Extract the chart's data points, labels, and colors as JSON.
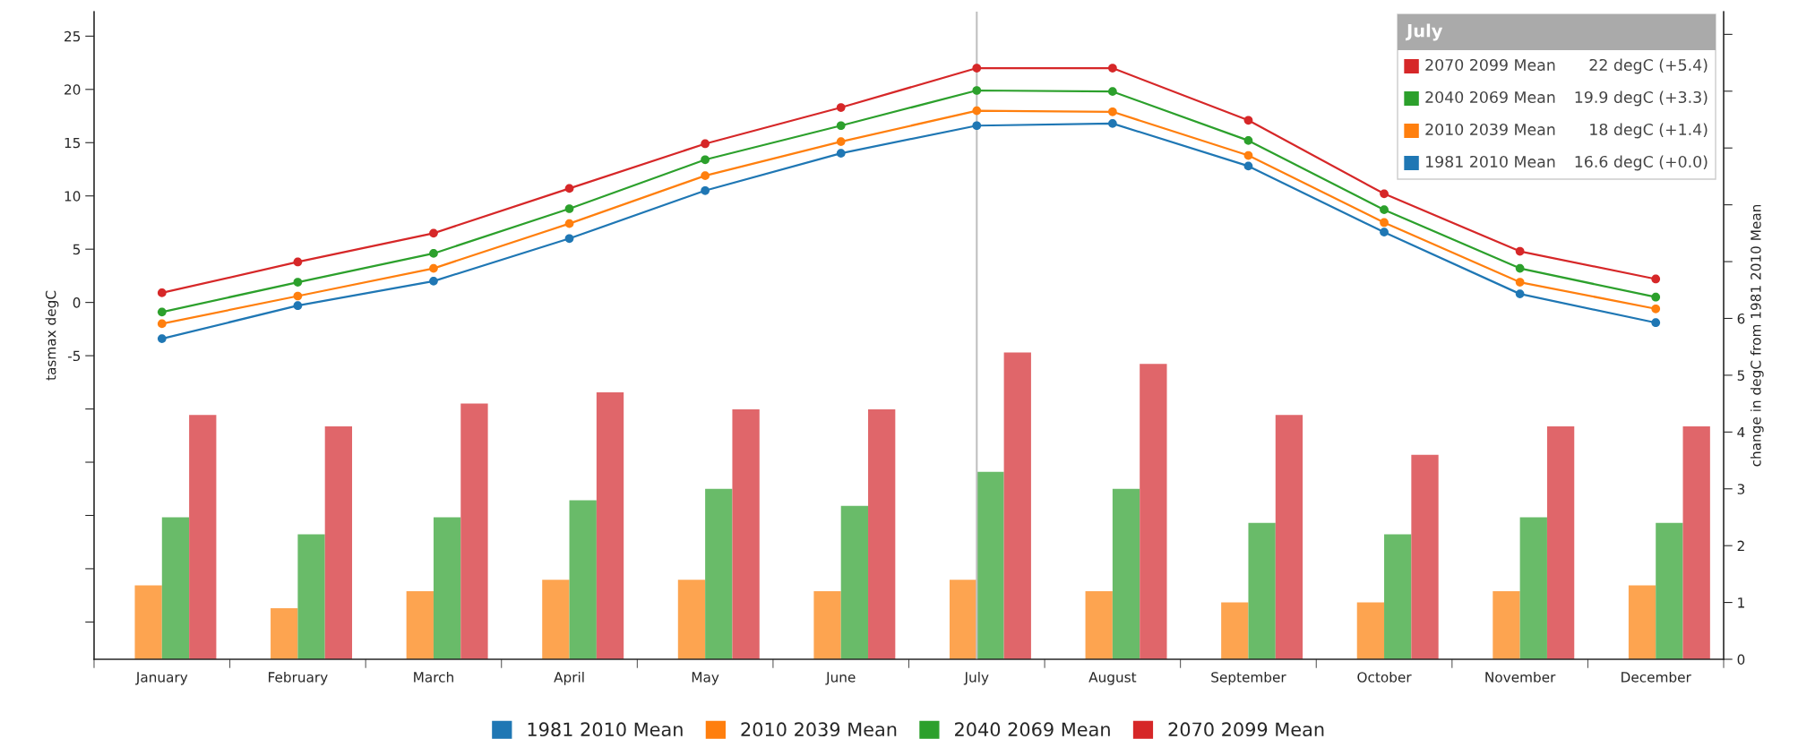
{
  "chart_data": {
    "type": "line",
    "ylabel": "tasmax degC",
    "y2label": "change in degC from 1981 2010 Mean",
    "categories": [
      "January",
      "February",
      "March",
      "April",
      "May",
      "June",
      "July",
      "August",
      "September",
      "October",
      "November",
      "December"
    ],
    "series": [
      {
        "name": "1981 2010 Mean",
        "color": "#1f77b4",
        "values": [
          -3.4,
          -0.3,
          2.0,
          6.0,
          10.5,
          14.0,
          16.6,
          16.8,
          12.8,
          6.6,
          0.8,
          -1.9
        ]
      },
      {
        "name": "2010 2039 Mean",
        "color": "#ff7f0e",
        "values": [
          -2.0,
          0.6,
          3.2,
          7.4,
          11.9,
          15.1,
          18.0,
          17.9,
          13.8,
          7.5,
          1.9,
          -0.6
        ]
      },
      {
        "name": "2040 2069 Mean",
        "color": "#2ca02c",
        "values": [
          -0.9,
          1.9,
          4.6,
          8.8,
          13.4,
          16.6,
          19.9,
          19.8,
          15.2,
          8.7,
          3.2,
          0.5
        ]
      },
      {
        "name": "2070 2099 Mean",
        "color": "#d62728",
        "values": [
          0.9,
          3.8,
          6.5,
          10.7,
          14.9,
          18.3,
          22.0,
          22.0,
          17.1,
          10.2,
          4.8,
          2.2
        ]
      },
      {
        "type": "bar",
        "axis": "y2",
        "color": "#fda450",
        "values": [
          1.3,
          0.9,
          1.2,
          1.4,
          1.4,
          1.2,
          1.4,
          1.2,
          1.0,
          1.0,
          1.2,
          1.3
        ]
      },
      {
        "type": "bar",
        "axis": "y2",
        "color": "#69bb69",
        "values": [
          2.5,
          2.2,
          2.5,
          2.8,
          3.0,
          2.7,
          3.3,
          3.0,
          2.4,
          2.2,
          2.5,
          2.4
        ]
      },
      {
        "type": "bar",
        "axis": "y2",
        "color": "#e0666a",
        "values": [
          4.3,
          4.1,
          4.5,
          4.7,
          4.4,
          4.4,
          5.4,
          5.2,
          4.3,
          3.6,
          4.1,
          4.1
        ]
      }
    ],
    "ylim": [
      -33.5,
      27.3
    ],
    "yticks": [
      {
        "value": -30,
        "label": null
      },
      {
        "value": -25,
        "label": null
      },
      {
        "value": -20,
        "label": null
      },
      {
        "value": -15,
        "label": null
      },
      {
        "value": -10,
        "label": null
      },
      -5,
      0,
      5,
      10,
      15,
      20,
      25
    ],
    "y2lim": [
      0,
      11.4
    ],
    "y2ticks": [
      0,
      1,
      2,
      3,
      4,
      5,
      6,
      {
        "value": 7,
        "label": null
      },
      {
        "value": 8,
        "label": null
      },
      {
        "value": 9,
        "label": null
      },
      {
        "value": 10,
        "label": null
      },
      {
        "value": 11,
        "label": null
      }
    ],
    "marker": "circle",
    "legend": "bottom",
    "ref_lines": [
      {
        "axis": "x",
        "value": "July",
        "color": "#c0c0c0"
      }
    ],
    "annotations": [
      "July",
      "2070 2099 Mean",
      "22 degC (+5.4)",
      "2040 2069 Mean",
      "19.9 degC (+3.3)",
      "2010 2039 Mean",
      "18 degC (+1.4)",
      "1981 2010 Mean",
      "16.6 degC (+0.0)"
    ]
  }
}
